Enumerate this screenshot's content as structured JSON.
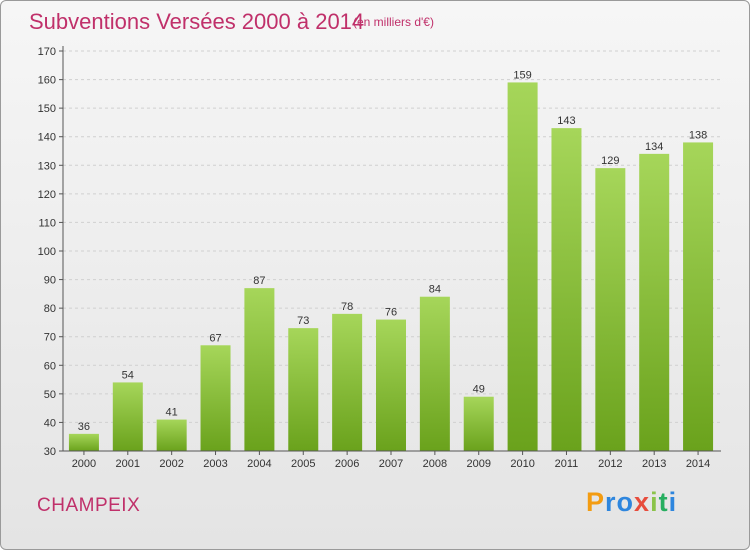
{
  "header": {
    "title": "Subventions Versées 2000 à 2014",
    "subtitle": "(en milliers d'€)"
  },
  "commune": "CHAMPEIX",
  "logo": {
    "letters": [
      "P",
      "r",
      "o",
      "x",
      "i",
      "t",
      "i"
    ],
    "colors": [
      "#f39c12",
      "#2e86de",
      "#2e86de",
      "#e74c3c",
      "#8bc34a",
      "#27ae60",
      "#2e86de"
    ]
  },
  "chart_data": {
    "type": "bar",
    "categories": [
      "2000",
      "2001",
      "2002",
      "2003",
      "2004",
      "2005",
      "2006",
      "2007",
      "2008",
      "2009",
      "2010",
      "2011",
      "2012",
      "2013",
      "2014"
    ],
    "values": [
      36,
      54,
      41,
      67,
      87,
      73,
      78,
      76,
      84,
      49,
      159,
      143,
      129,
      134,
      138
    ],
    "data_labels": [
      "36",
      "54",
      "41",
      "67",
      "87",
      "73",
      "78",
      "76",
      "84",
      "49",
      "159",
      "143",
      "129",
      "134",
      "138"
    ],
    "ylim": [
      30,
      170
    ],
    "yticks": [
      "30",
      "40",
      "50",
      "60",
      "70",
      "80",
      "90",
      "100",
      "110",
      "120",
      "130",
      "140",
      "150",
      "160",
      "170"
    ],
    "grid": true,
    "bar_color": "#8cc43c"
  }
}
